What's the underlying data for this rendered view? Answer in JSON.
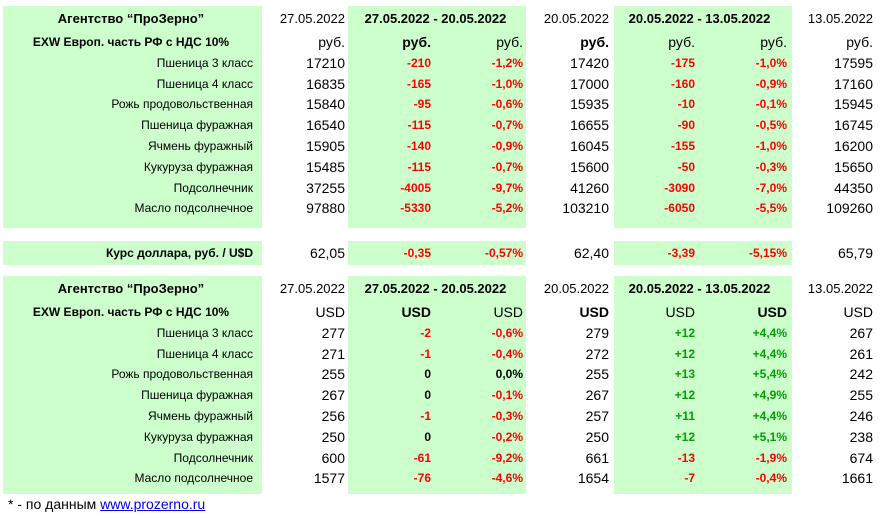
{
  "rub_table": {
    "agency": "Агентство “ПроЗерно”",
    "date1": "27.05.2022",
    "range1": "27.05.2022 - 20.05.2022",
    "date2": "20.05.2022",
    "range2": "20.05.2022 - 13.05.2022",
    "date3": "13.05.2022",
    "basis": "EXW Европ. часть РФ с НДС 10%",
    "unit_row": [
      "руб.",
      "руб.",
      "руб.",
      "руб.",
      "руб.",
      "руб.",
      "руб."
    ],
    "rows": [
      {
        "name": "Пшеница 3 класс",
        "v1": "17210",
        "d1": "-210",
        "p1": "-1,2%",
        "v2": "17420",
        "d2": "-175",
        "p2": "-1,0%",
        "v3": "17595"
      },
      {
        "name": "Пшеница 4 класс",
        "v1": "16835",
        "d1": "-165",
        "p1": "-1,0%",
        "v2": "17000",
        "d2": "-160",
        "p2": "-0,9%",
        "v3": "17160"
      },
      {
        "name": "Рожь продовольственная",
        "v1": "15840",
        "d1": "-95",
        "p1": "-0,6%",
        "v2": "15935",
        "d2": "-10",
        "p2": "-0,1%",
        "v3": "15945"
      },
      {
        "name": "Пшеница фуражная",
        "v1": "16540",
        "d1": "-115",
        "p1": "-0,7%",
        "v2": "16655",
        "d2": "-90",
        "p2": "-0,5%",
        "v3": "16745"
      },
      {
        "name": "Ячмень фуражный",
        "v1": "15905",
        "d1": "-140",
        "p1": "-0,9%",
        "v2": "16045",
        "d2": "-155",
        "p2": "-1,0%",
        "v3": "16200"
      },
      {
        "name": "Кукуруза фуражная",
        "v1": "15485",
        "d1": "-115",
        "p1": "-0,7%",
        "v2": "15600",
        "d2": "-50",
        "p2": "-0,3%",
        "v3": "15650"
      },
      {
        "name": "Подсолнечник",
        "v1": "37255",
        "d1": "-4005",
        "p1": "-9,7%",
        "v2": "41260",
        "d2": "-3090",
        "p2": "-7,0%",
        "v3": "44350"
      },
      {
        "name": "Масло подсолнечное",
        "v1": "97880",
        "d1": "-5330",
        "p1": "-5,2%",
        "v2": "103210",
        "d2": "-6050",
        "p2": "-5,5%",
        "v3": "109260"
      }
    ]
  },
  "usd_rate": {
    "label": "Курс доллара, руб. / U$D",
    "v1": "62,05",
    "d1": "-0,35",
    "p1": "-0,57%",
    "v2": "62,40",
    "d2": "-3,39",
    "p2": "-5,15%",
    "v3": "65,79"
  },
  "usd_table": {
    "agency": "Агентство “ПроЗерно”",
    "date1": "27.05.2022",
    "range1": "27.05.2022 - 20.05.2022",
    "date2": "20.05.2022",
    "range2": "20.05.2022 - 13.05.2022",
    "date3": "13.05.2022",
    "basis": "EXW Европ. часть РФ с НДС 10%",
    "unit_row": [
      "USD",
      "USD",
      "USD",
      "USD",
      "USD",
      "USD",
      "USD"
    ],
    "rows": [
      {
        "name": "Пшеница 3 класс",
        "v1": "277",
        "d1": "-2",
        "p1": "-0,6%",
        "v2": "279",
        "d2": "+12",
        "p2": "+4,4%",
        "v3": "267"
      },
      {
        "name": "Пшеница 4 класс",
        "v1": "271",
        "d1": "-1",
        "p1": "-0,4%",
        "v2": "272",
        "d2": "+12",
        "p2": "+4,4%",
        "v3": "261"
      },
      {
        "name": "Рожь продовольственная",
        "v1": "255",
        "d1": "0",
        "p1": "0,0%",
        "v2": "255",
        "d2": "+13",
        "p2": "+5,4%",
        "v3": "242"
      },
      {
        "name": "Пшеница фуражная",
        "v1": "267",
        "d1": "0",
        "p1": "-0,1%",
        "v2": "267",
        "d2": "+12",
        "p2": "+4,9%",
        "v3": "255"
      },
      {
        "name": "Ячмень фуражный",
        "v1": "256",
        "d1": "-1",
        "p1": "-0,3%",
        "v2": "257",
        "d2": "+11",
        "p2": "+4,4%",
        "v3": "246"
      },
      {
        "name": "Кукуруза фуражная",
        "v1": "250",
        "d1": "0",
        "p1": "-0,2%",
        "v2": "250",
        "d2": "+12",
        "p2": "+5,1%",
        "v3": "238"
      },
      {
        "name": "Подсолнечник",
        "v1": "600",
        "d1": "-61",
        "p1": "-9,2%",
        "v2": "661",
        "d2": "-13",
        "p2": "-1,9%",
        "v3": "674"
      },
      {
        "name": "Масло подсолнечное",
        "v1": "1577",
        "d1": "-76",
        "p1": "-4,6%",
        "v2": "1654",
        "d2": "-7",
        "p2": "-0,4%",
        "v3": "1661"
      }
    ]
  },
  "footnote": {
    "prefix": "* - по данным ",
    "link": "www.prozerno.ru"
  },
  "colors": {
    "band_bg": "#ccffcc",
    "negative": "#ff0000",
    "positive": "#00a000"
  }
}
